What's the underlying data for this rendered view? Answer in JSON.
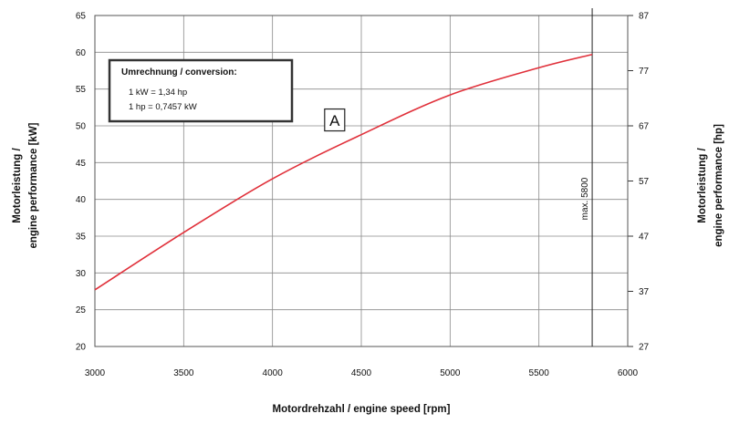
{
  "chart_data": {
    "type": "line",
    "x": [
      3000,
      3500,
      4000,
      4500,
      5000,
      5500,
      5800
    ],
    "series": [
      {
        "values": [
          27.7,
          35.5,
          42.8,
          48.8,
          54.2,
          57.9,
          59.7
        ],
        "color": "#e0303a"
      }
    ],
    "xlabel": "Motordrehzahl / engine speed [rpm]",
    "ylabel_left": [
      "Motorleistung /",
      "engine performance [kW]"
    ],
    "ylabel_right": [
      "Motorleistung /",
      "engine performance [hp]"
    ],
    "xlim": [
      3000,
      6000
    ],
    "ylim_left": [
      20,
      65
    ],
    "ylim_right": [
      27,
      87
    ],
    "x_ticks": [
      "3000",
      "3500",
      "4000",
      "4500",
      "5000",
      "5500",
      "6000"
    ],
    "y_ticks_left": [
      "20",
      "25",
      "30",
      "35",
      "40",
      "45",
      "50",
      "55",
      "60",
      "65"
    ],
    "y_ticks_right": [
      "27",
      "37",
      "47",
      "57",
      "67",
      "77",
      "87"
    ],
    "grid": true,
    "conversion_box": {
      "title": "Umrechnung / conversion:",
      "line1": "1  kW  =  1,34 hp",
      "line2": "1  hp   =  0,7457 kW"
    },
    "marker_label": "A",
    "marker_at": {
      "x": 4350,
      "y": 50.8
    },
    "max_line": {
      "x": 5800,
      "label": "max. 5800"
    }
  }
}
